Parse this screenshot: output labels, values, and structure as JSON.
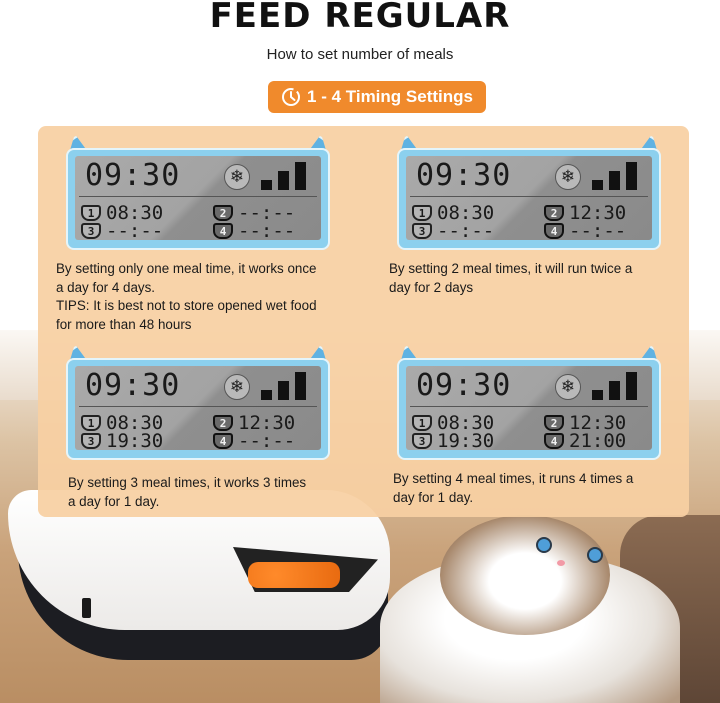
{
  "header": {
    "title": "FEED REGULAR",
    "subtitle": "How to set number of meals",
    "pill_label": "1 - 4 Timing Settings",
    "pill_icon": "clock-icon",
    "pill_color": "#f08a2c"
  },
  "panel": {
    "background": "#f7d0a3",
    "cards": [
      {
        "lcd": {
          "clock": "09:30",
          "icon": "snowflake-icon",
          "slots": [
            {
              "n": "1",
              "time": "08:30"
            },
            {
              "n": "2",
              "time": "--:--"
            },
            {
              "n": "3",
              "time": "--:--"
            },
            {
              "n": "4",
              "time": "--:--"
            }
          ]
        },
        "caption_lines": [
          "By setting only one meal time, it works once",
          "a day for 4 days.",
          "TIPS: It is best not to store opened wet food",
          "for more than 48 hours"
        ]
      },
      {
        "lcd": {
          "clock": "09:30",
          "icon": "snowflake-icon",
          "slots": [
            {
              "n": "1",
              "time": "08:30"
            },
            {
              "n": "2",
              "time": "12:30"
            },
            {
              "n": "3",
              "time": "--:--"
            },
            {
              "n": "4",
              "time": "--:--"
            }
          ]
        },
        "caption_lines": [
          "By setting 2 meal times, it will run twice a",
          "day for 2 days"
        ]
      },
      {
        "lcd": {
          "clock": "09:30",
          "icon": "snowflake-icon",
          "slots": [
            {
              "n": "1",
              "time": "08:30"
            },
            {
              "n": "2",
              "time": "12:30"
            },
            {
              "n": "3",
              "time": "19:30"
            },
            {
              "n": "4",
              "time": "--:--"
            }
          ]
        },
        "caption_lines": [
          "By setting 3 meal times, it works 3 times",
          "a day for 1 day."
        ]
      },
      {
        "lcd": {
          "clock": "09:30",
          "icon": "snowflake-icon",
          "slots": [
            {
              "n": "1",
              "time": "08:30"
            },
            {
              "n": "2",
              "time": "12:30"
            },
            {
              "n": "3",
              "time": "19:30"
            },
            {
              "n": "4",
              "time": "21:00"
            }
          ]
        },
        "caption_lines": [
          "By setting 4 meal times, it runs 4 times a",
          "day for 1 day."
        ]
      }
    ]
  },
  "photo": {
    "subjects": [
      "automatic-pet-feeder",
      "ragdoll-cat"
    ],
    "food_color": "#f07a1c",
    "eye_color": "#4f9ed8"
  }
}
